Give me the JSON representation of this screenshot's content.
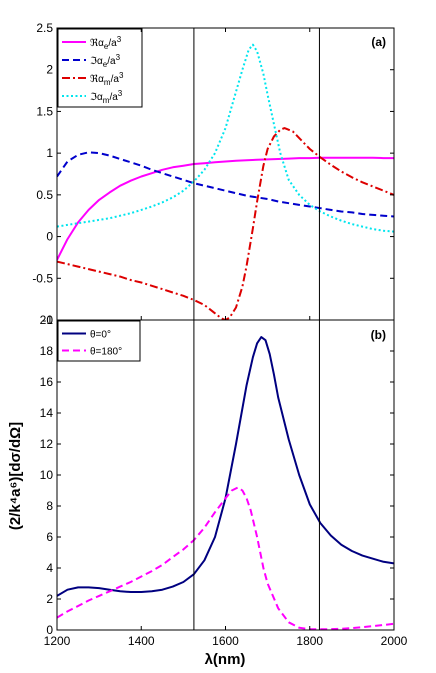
{
  "chart_data": [
    {
      "type": "line",
      "panel_label": "(a)",
      "xlim": [
        1200,
        2000
      ],
      "ylim": [
        -1,
        2.5
      ],
      "grid": false,
      "legend_placement": "top-left",
      "y_ticks": [
        "-1",
        "-0.5",
        "0",
        "0.5",
        "1",
        "1.5",
        "2",
        "2.5"
      ],
      "vertical_lines_x": [
        1525,
        1823
      ],
      "series": [
        {
          "name": "ℜα_e/a³",
          "legend": {
            "prefix": "ℜα",
            "sub": "e",
            "mid": "/a",
            "sup": "3"
          },
          "color": "#ff00ff",
          "dash": "solid",
          "x": [
            1200,
            1225,
            1250,
            1275,
            1300,
            1325,
            1350,
            1375,
            1400,
            1425,
            1450,
            1475,
            1500,
            1525,
            1550,
            1575,
            1600,
            1625,
            1650,
            1675,
            1700,
            1725,
            1750,
            1775,
            1800,
            1825,
            1850,
            1875,
            1900,
            1925,
            1950,
            1975,
            2000
          ],
          "y": [
            -0.28,
            -0.03,
            0.17,
            0.32,
            0.44,
            0.53,
            0.61,
            0.67,
            0.72,
            0.76,
            0.8,
            0.83,
            0.85,
            0.87,
            0.88,
            0.89,
            0.9,
            0.91,
            0.915,
            0.92,
            0.925,
            0.93,
            0.935,
            0.94,
            0.94,
            0.945,
            0.945,
            0.945,
            0.945,
            0.945,
            0.945,
            0.94,
            0.94
          ]
        },
        {
          "name": "ℑα_e/a³",
          "legend": {
            "prefix": "ℑα",
            "sub": "e",
            "mid": "/a",
            "sup": "3"
          },
          "color": "#0000cc",
          "dash": "dashed",
          "x": [
            1200,
            1225,
            1250,
            1275,
            1300,
            1325,
            1350,
            1375,
            1400,
            1425,
            1450,
            1475,
            1500,
            1525,
            1550,
            1575,
            1600,
            1625,
            1650,
            1675,
            1700,
            1725,
            1750,
            1775,
            1800,
            1825,
            1850,
            1875,
            1900,
            1925,
            1950,
            1975,
            2000
          ],
          "y": [
            0.72,
            0.9,
            0.98,
            1.01,
            1.0,
            0.97,
            0.93,
            0.89,
            0.85,
            0.8,
            0.76,
            0.72,
            0.68,
            0.64,
            0.61,
            0.58,
            0.55,
            0.52,
            0.49,
            0.47,
            0.45,
            0.42,
            0.4,
            0.38,
            0.36,
            0.34,
            0.32,
            0.3,
            0.29,
            0.27,
            0.26,
            0.25,
            0.24
          ]
        },
        {
          "name": "ℜα_m/a³",
          "legend": {
            "prefix": "ℜα",
            "sub": "m",
            "mid": "/a",
            "sup": "3"
          },
          "color": "#dd0000",
          "dash": "dashdot",
          "x": [
            1200,
            1225,
            1250,
            1275,
            1300,
            1325,
            1350,
            1375,
            1400,
            1425,
            1450,
            1475,
            1500,
            1525,
            1550,
            1575,
            1590,
            1600,
            1610,
            1625,
            1640,
            1650,
            1665,
            1675,
            1690,
            1700,
            1715,
            1730,
            1740,
            1760,
            1775,
            1800,
            1825,
            1850,
            1875,
            1900,
            1925,
            1950,
            1975,
            2000
          ],
          "y": [
            -0.3,
            -0.33,
            -0.36,
            -0.39,
            -0.42,
            -0.45,
            -0.48,
            -0.52,
            -0.55,
            -0.59,
            -0.63,
            -0.67,
            -0.71,
            -0.76,
            -0.82,
            -0.92,
            -0.98,
            -1.0,
            -0.97,
            -0.85,
            -0.6,
            -0.35,
            0.1,
            0.42,
            0.85,
            1.05,
            1.2,
            1.28,
            1.3,
            1.26,
            1.18,
            1.05,
            0.95,
            0.86,
            0.78,
            0.71,
            0.65,
            0.6,
            0.55,
            0.5
          ]
        },
        {
          "name": "ℑα_m/a³",
          "legend": {
            "prefix": "ℑα",
            "sub": "m",
            "mid": "/a",
            "sup": "3"
          },
          "color": "#00e5ee",
          "dash": "dotted",
          "x": [
            1200,
            1225,
            1250,
            1275,
            1300,
            1325,
            1350,
            1375,
            1400,
            1425,
            1450,
            1475,
            1500,
            1525,
            1550,
            1575,
            1600,
            1620,
            1640,
            1655,
            1665,
            1675,
            1690,
            1700,
            1715,
            1730,
            1750,
            1775,
            1800,
            1825,
            1850,
            1875,
            1900,
            1925,
            1950,
            1975,
            2000
          ],
          "y": [
            0.12,
            0.14,
            0.16,
            0.18,
            0.2,
            0.22,
            0.25,
            0.28,
            0.32,
            0.36,
            0.41,
            0.47,
            0.55,
            0.66,
            0.8,
            1.0,
            1.3,
            1.65,
            2.0,
            2.24,
            2.3,
            2.22,
            1.95,
            1.7,
            1.35,
            1.0,
            0.68,
            0.5,
            0.38,
            0.3,
            0.24,
            0.19,
            0.15,
            0.12,
            0.09,
            0.07,
            0.06
          ]
        }
      ]
    },
    {
      "type": "line",
      "panel_label": "(b)",
      "xlim": [
        1200,
        2000
      ],
      "ylim": [
        0,
        20
      ],
      "grid": false,
      "legend_placement": "top-left",
      "xlabel": "λ(nm)",
      "ylabel": "(2/k⁴a⁶)[dσ/dΩ]",
      "x_ticks": [
        "1200",
        "1400",
        "1600",
        "1800",
        "2000"
      ],
      "y_ticks": [
        "0",
        "2",
        "4",
        "6",
        "8",
        "10",
        "12",
        "14",
        "16",
        "18",
        "20"
      ],
      "vertical_lines_x": [
        1525,
        1823
      ],
      "series": [
        {
          "name": "θ=0°",
          "color": "#000080",
          "dash": "solid",
          "x": [
            1200,
            1225,
            1250,
            1275,
            1300,
            1325,
            1350,
            1375,
            1400,
            1425,
            1450,
            1475,
            1500,
            1525,
            1550,
            1575,
            1600,
            1625,
            1650,
            1665,
            1675,
            1685,
            1695,
            1705,
            1715,
            1725,
            1750,
            1775,
            1800,
            1825,
            1850,
            1875,
            1900,
            1925,
            1950,
            1975,
            2000
          ],
          "y": [
            2.2,
            2.6,
            2.75,
            2.75,
            2.7,
            2.6,
            2.5,
            2.45,
            2.45,
            2.5,
            2.6,
            2.8,
            3.1,
            3.6,
            4.5,
            6.0,
            8.5,
            12.0,
            15.8,
            17.6,
            18.5,
            18.9,
            18.7,
            17.8,
            16.5,
            15.0,
            12.3,
            10.0,
            8.1,
            6.9,
            6.1,
            5.5,
            5.1,
            4.8,
            4.6,
            4.4,
            4.3
          ]
        },
        {
          "name": "θ=180°",
          "color": "#ff00ff",
          "dash": "dashed",
          "x": [
            1200,
            1225,
            1250,
            1275,
            1300,
            1325,
            1350,
            1375,
            1400,
            1425,
            1450,
            1475,
            1500,
            1525,
            1550,
            1575,
            1600,
            1615,
            1630,
            1640,
            1650,
            1660,
            1675,
            1690,
            1700,
            1725,
            1750,
            1775,
            1800,
            1825,
            1850,
            1875,
            1900,
            1925,
            1950,
            1975,
            2000
          ],
          "y": [
            0.8,
            1.2,
            1.55,
            1.9,
            2.2,
            2.5,
            2.8,
            3.1,
            3.45,
            3.8,
            4.2,
            4.7,
            5.2,
            5.8,
            6.6,
            7.6,
            8.5,
            9.0,
            9.2,
            9.0,
            8.5,
            7.7,
            6.0,
            4.0,
            3.0,
            1.4,
            0.5,
            0.15,
            0.05,
            0.05,
            0.05,
            0.08,
            0.12,
            0.18,
            0.25,
            0.32,
            0.4
          ]
        }
      ]
    }
  ]
}
